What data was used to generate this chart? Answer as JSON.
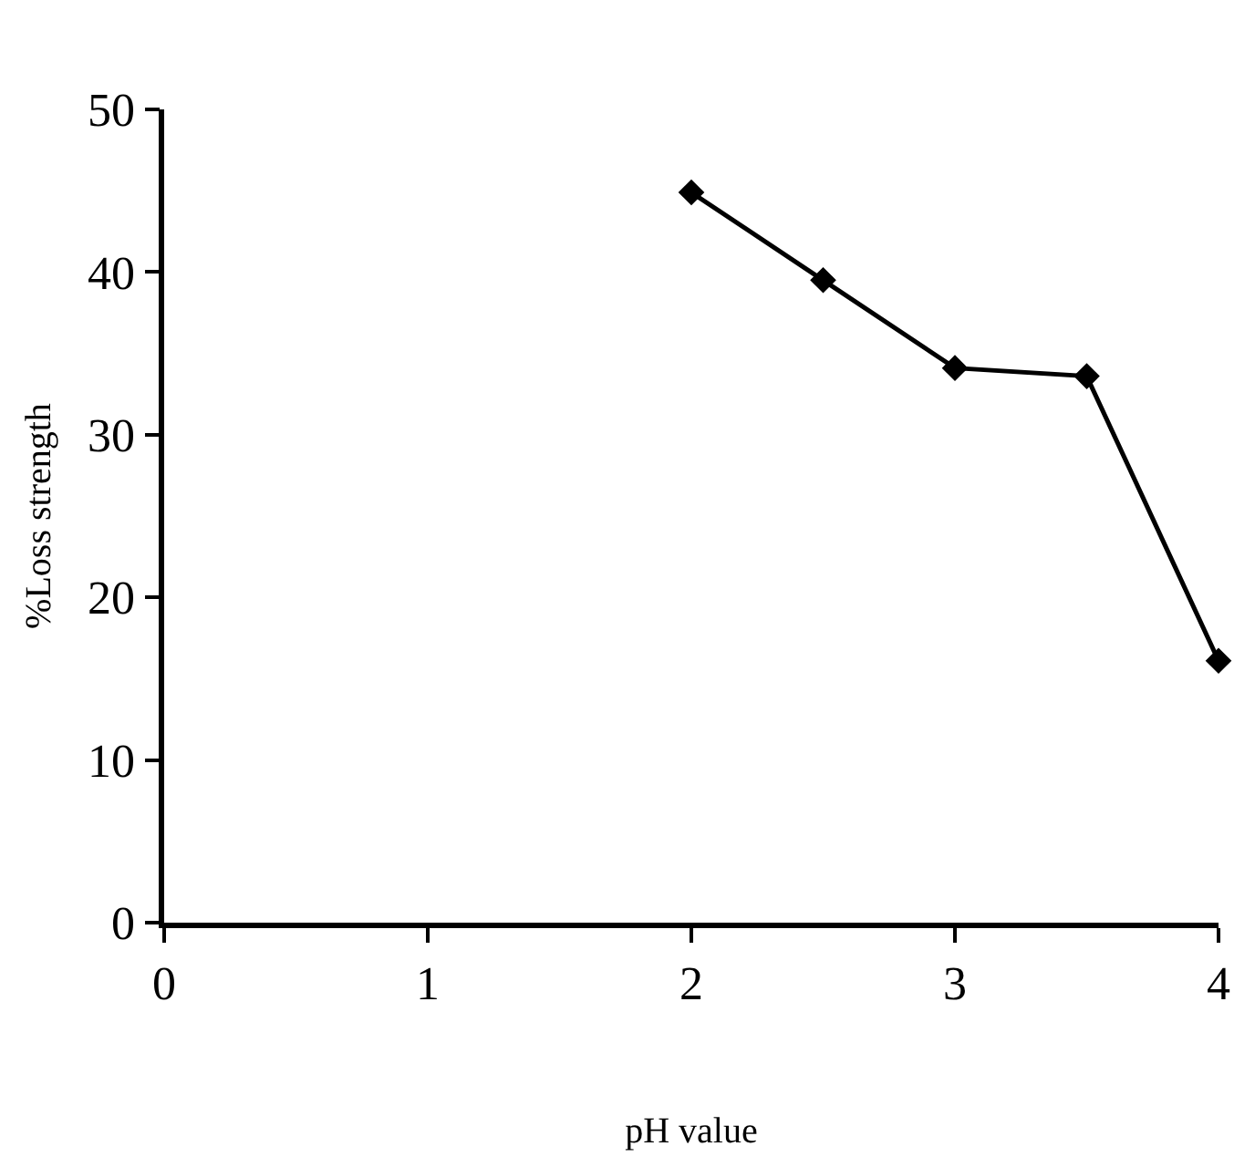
{
  "chart_data": {
    "type": "line",
    "xlabel": "pH value",
    "ylabel": "%Loss strength",
    "x": [
      2,
      2.5,
      3,
      3.5,
      4
    ],
    "series": [
      {
        "color": "#000000",
        "values": [
          44.9,
          39.5,
          34.1,
          33.6,
          16.1
        ]
      }
    ],
    "xlim": [
      0,
      4
    ],
    "xticks": [
      0,
      1,
      2,
      3,
      4
    ],
    "ylim": [
      0,
      50
    ],
    "yticks": [
      0,
      10,
      20,
      30,
      40,
      50
    ],
    "marker": "diamond",
    "line_style": "solid"
  }
}
